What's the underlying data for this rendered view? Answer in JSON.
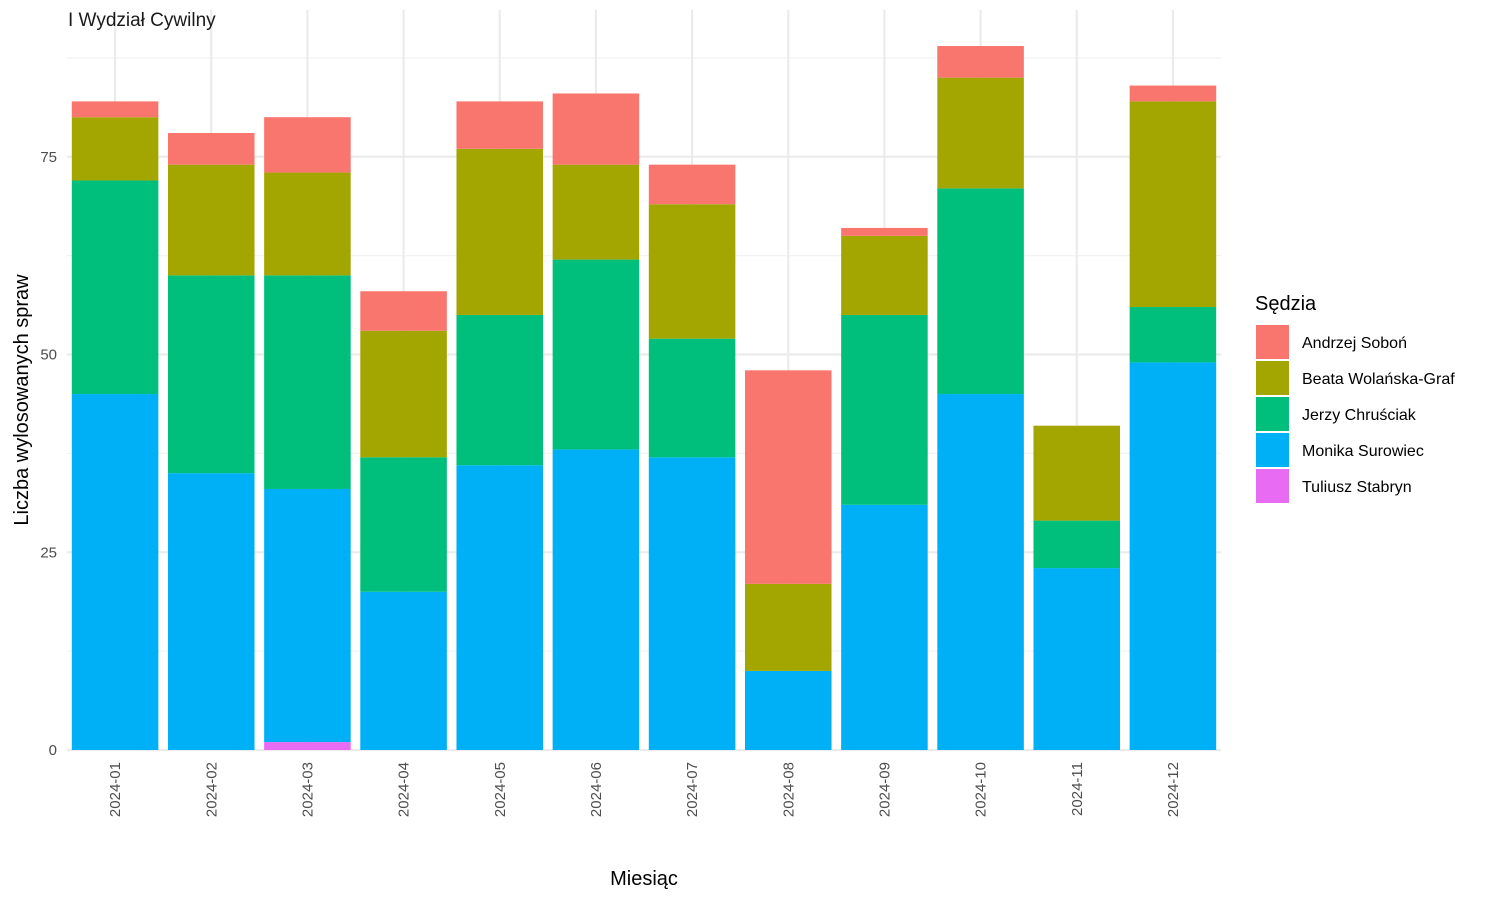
{
  "chart_data": {
    "type": "bar",
    "stacked": true,
    "title": "I Wydział Cywilny",
    "xlabel": "Miesiąc",
    "ylabel": "Liczba wylosowanych spraw",
    "ylim": [
      0,
      90
    ],
    "yticks": [
      0,
      25,
      50,
      75
    ],
    "grid": true,
    "legend_title": "Sędzia",
    "legend_position": "right",
    "categories": [
      "2024-01",
      "2024-02",
      "2024-03",
      "2024-04",
      "2024-05",
      "2024-06",
      "2024-07",
      "2024-08",
      "2024-09",
      "2024-10",
      "2024-11",
      "2024-12"
    ],
    "series": [
      {
        "name": "Tuliusz Stabryn",
        "color": "#E76BF3",
        "values": [
          0,
          0,
          1,
          0,
          0,
          0,
          0,
          0,
          0,
          0,
          0,
          0
        ]
      },
      {
        "name": "Monika Surowiec",
        "color": "#00B0F6",
        "values": [
          45,
          35,
          32,
          20,
          36,
          38,
          37,
          10,
          31,
          45,
          23,
          49
        ]
      },
      {
        "name": "Jerzy Chruściak",
        "color": "#00BF7D",
        "values": [
          27,
          25,
          27,
          17,
          19,
          24,
          15,
          0,
          24,
          26,
          6,
          7
        ]
      },
      {
        "name": "Beata Wolańska-Graf",
        "color": "#A3A500",
        "values": [
          8,
          14,
          13,
          16,
          21,
          12,
          17,
          11,
          10,
          14,
          12,
          26
        ]
      },
      {
        "name": "Andrzej Soboń",
        "color": "#F8766D",
        "values": [
          2,
          4,
          7,
          5,
          6,
          9,
          5,
          27,
          1,
          4,
          0,
          2
        ]
      }
    ],
    "legend_order": [
      "Andrzej Soboń",
      "Beata Wolańska-Graf",
      "Jerzy Chruściak",
      "Monika Surowiec",
      "Tuliusz Stabryn"
    ]
  }
}
